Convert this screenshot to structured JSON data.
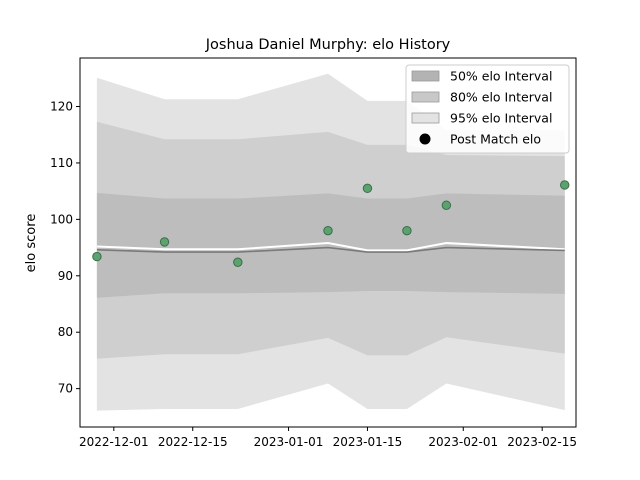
{
  "chart_data": {
    "type": "line",
    "title": "Joshua Daniel Murphy: elo History",
    "xlabel": "",
    "ylabel": "elo score",
    "xlim": [
      "2022-11-25",
      "2023-02-21"
    ],
    "ylim": [
      63.2,
      128.6
    ],
    "x_ticks": [
      "2022-12-01",
      "2022-12-15",
      "2023-01-01",
      "2023-01-15",
      "2023-02-01",
      "2023-02-15"
    ],
    "y_ticks": [
      70,
      80,
      90,
      100,
      110,
      120
    ],
    "grid": false,
    "legend_position": "top-right",
    "dates": [
      "2022-11-28",
      "2022-12-10",
      "2022-12-23",
      "2023-01-08",
      "2023-01-15",
      "2023-01-22",
      "2023-01-29",
      "2023-02-19"
    ],
    "bands": [
      {
        "name": "95% elo Interval",
        "color": "#e3e3e3",
        "upper": [
          125.1,
          121.3,
          121.3,
          125.8,
          121.0,
          121.0,
          115.8,
          115.8
        ],
        "lower": [
          66.1,
          66.4,
          66.4,
          70.9,
          66.4,
          66.4,
          70.9,
          66.2
        ]
      },
      {
        "name": "80% elo Interval",
        "color": "#cfcfcf",
        "upper": [
          117.3,
          114.2,
          114.2,
          115.5,
          113.2,
          113.2,
          111.4,
          111.2
        ],
        "lower": [
          75.3,
          76.1,
          76.1,
          79.0,
          75.9,
          75.9,
          79.1,
          76.2
        ]
      },
      {
        "name": "50% elo Interval",
        "color": "#bdbdbd",
        "upper": [
          104.7,
          103.7,
          103.7,
          104.6,
          103.7,
          103.7,
          104.6,
          104.2
        ],
        "lower": [
          86.1,
          86.9,
          86.9,
          87.1,
          87.3,
          87.3,
          87.1,
          86.8
        ]
      }
    ],
    "line_white": [
      95.2,
      94.7,
      94.7,
      95.8,
      94.5,
      94.5,
      95.8,
      94.7
    ],
    "line_gray": [
      94.6,
      94.2,
      94.2,
      95.0,
      94.2,
      94.2,
      95.0,
      94.5
    ],
    "series": [
      {
        "name": "Post Match elo",
        "color": "#5ba36e",
        "x": [
          "2022-11-28",
          "2022-12-10",
          "2022-12-23",
          "2023-01-08",
          "2023-01-15",
          "2023-01-22",
          "2023-01-29",
          "2023-02-19"
        ],
        "y": [
          93.4,
          96.0,
          92.4,
          98.0,
          105.5,
          98.0,
          102.5,
          106.1
        ]
      }
    ],
    "legend": [
      {
        "label": "50% elo Interval",
        "kind": "patch",
        "color": "#b3b3b3"
      },
      {
        "label": "80% elo Interval",
        "kind": "patch",
        "color": "#c8c8c8"
      },
      {
        "label": "95% elo Interval",
        "kind": "patch",
        "color": "#e3e3e3"
      },
      {
        "label": "Post Match elo",
        "kind": "marker",
        "color": "#000000"
      }
    ]
  }
}
